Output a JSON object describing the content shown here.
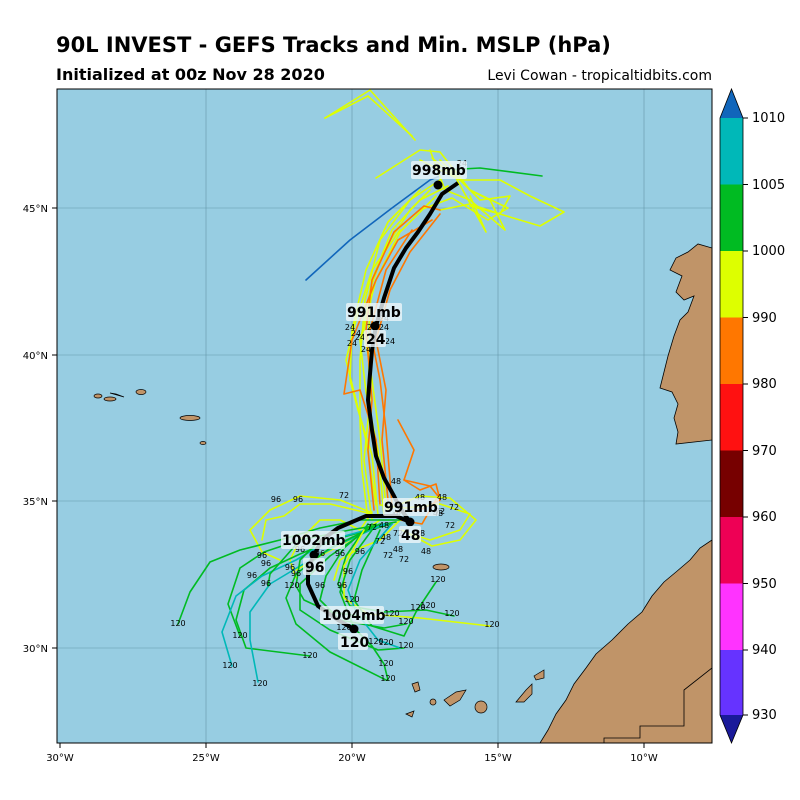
{
  "header": {
    "title": "90L INVEST - GEFS Tracks and Min. MSLP (hPa)",
    "subtitle": "Initialized at 00z Nov 28 2020",
    "credit": "Levi Cowan - tropicaltidbits.com"
  },
  "colors": {
    "ocean": "#97cde2",
    "land": "#c09468",
    "mean_track": "#000000"
  },
  "axes": {
    "lon_labels": [
      "30°W",
      "25°W",
      "20°W",
      "15°W",
      "10°W"
    ],
    "lat_labels": [
      "30°N",
      "35°N",
      "40°N",
      "45°N"
    ]
  },
  "colorbar": {
    "ticks": [
      "930",
      "940",
      "950",
      "960",
      "970",
      "980",
      "990",
      "1000",
      "1005",
      "1010"
    ],
    "colors": [
      "#1a1a9a",
      "#6633ff",
      "#ff33ff",
      "#ee0055",
      "#770000",
      "#ff1111",
      "#ff7700",
      "#ddff00",
      "#00bb22",
      "#00b8b8",
      "#1166bb"
    ]
  },
  "mean_track": {
    "labels": [
      {
        "pressure": "998mb",
        "hour": ""
      },
      {
        "pressure": "991mb",
        "hour": "24"
      },
      {
        "pressure": "991mb",
        "hour": "48"
      },
      {
        "pressure": "1002mb",
        "hour": "96"
      },
      {
        "pressure": "1004mb",
        "hour": "120"
      }
    ]
  },
  "hour_markers": [
    "24",
    "48",
    "72",
    "96",
    "120"
  ]
}
